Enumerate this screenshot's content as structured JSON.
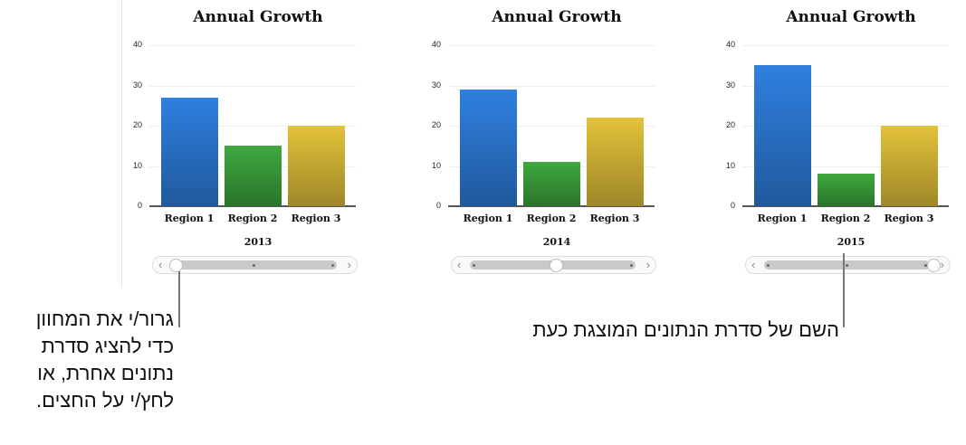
{
  "chart_data": [
    {
      "type": "bar",
      "title": "Annual Growth",
      "series_label": "2013",
      "categories": [
        "Region 1",
        "Region 2",
        "Region 3"
      ],
      "values": [
        27,
        15,
        20
      ],
      "ylim": [
        0,
        40
      ],
      "yticks": [
        "0",
        "10",
        "20",
        "30",
        "40"
      ],
      "grid": true,
      "colors": [
        "#2f80e0",
        "#3ea83e",
        "#e3c23a"
      ],
      "slider_position": 0
    },
    {
      "type": "bar",
      "title": "Annual Growth",
      "series_label": "2014",
      "categories": [
        "Region 1",
        "Region 2",
        "Region 3"
      ],
      "values": [
        29,
        11,
        22
      ],
      "ylim": [
        0,
        40
      ],
      "yticks": [
        "0",
        "10",
        "20",
        "30",
        "40"
      ],
      "grid": true,
      "colors": [
        "#2f80e0",
        "#3ea83e",
        "#e3c23a"
      ],
      "slider_position": 1
    },
    {
      "type": "bar",
      "title": "Annual Growth",
      "series_label": "2015",
      "categories": [
        "Region 1",
        "Region 2",
        "Region 3"
      ],
      "values": [
        35,
        8,
        20
      ],
      "ylim": [
        0,
        40
      ],
      "yticks": [
        "0",
        "10",
        "20",
        "30",
        "40"
      ],
      "grid": true,
      "colors": [
        "#2f80e0",
        "#3ea83e",
        "#e3c23a"
      ],
      "slider_position": 2
    }
  ],
  "slider": {
    "prev_icon": "chevron-left-icon",
    "next_icon": "chevron-right-icon",
    "prev": "‹",
    "next": "›"
  },
  "callouts": {
    "drag": [
      "גרור/י את המחוון",
      "כדי להציג סדרת",
      "נתונים אחרת, או",
      "לחץ/י על החצים."
    ],
    "series_name": "השם של סדרת הנתונים המוצגת כעת"
  }
}
